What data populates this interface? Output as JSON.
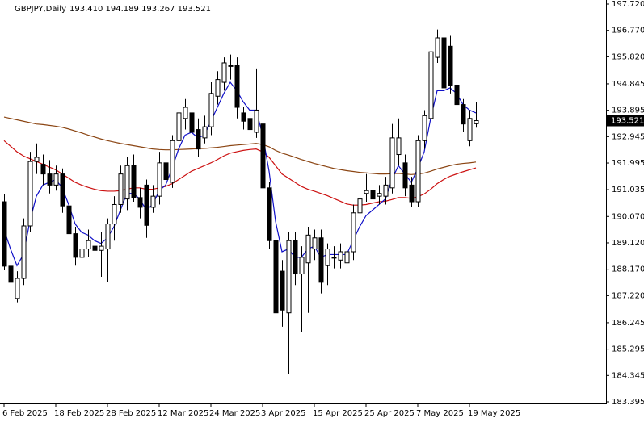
{
  "chart_data": {
    "type": "candlestick",
    "symbol": "GBPJPY,Daily",
    "info": "193.410 194.189 193.267 193.521",
    "categories": [
      "6 Feb 2025",
      null,
      null,
      null,
      null,
      null,
      null,
      null,
      "18 Feb 2025",
      null,
      null,
      null,
      null,
      null,
      null,
      null,
      "28 Feb 2025",
      null,
      null,
      null,
      null,
      null,
      null,
      null,
      "12 Mar 2025",
      null,
      null,
      null,
      null,
      null,
      null,
      null,
      "24 Mar 2025",
      null,
      null,
      null,
      null,
      null,
      null,
      null,
      "3 Apr 2025",
      null,
      null,
      null,
      null,
      null,
      null,
      null,
      "15 Apr 2025",
      null,
      null,
      null,
      null,
      null,
      null,
      null,
      "25 Apr 2025",
      null,
      null,
      null,
      null,
      null,
      null,
      null,
      "7 May 2025",
      null,
      null,
      null,
      null,
      null,
      null,
      null,
      "19 May 2025",
      null
    ],
    "open": [
      190.6,
      188.28,
      187.12,
      187.84,
      189.73,
      192.05,
      191.95,
      191.6,
      191.2,
      191.6,
      190.45,
      189.45,
      188.6,
      188.9,
      189.0,
      188.85,
      188.9,
      189.8,
      190.5,
      190.7,
      191.9,
      190.75,
      191.2,
      190.4,
      190.8,
      192.0,
      191.3,
      192.8,
      193.6,
      193.8,
      193.2,
      192.9,
      193.3,
      194.4,
      194.9,
      195.5,
      195.5,
      193.8,
      193.6,
      193.1,
      193.4,
      191.1,
      189.2,
      188.1,
      186.6,
      189.2,
      188.0,
      188.4,
      188.9,
      189.3,
      188.3,
      188.6,
      188.5,
      188.4,
      188.8,
      190.2,
      190.9,
      191.0,
      190.8,
      190.8,
      191.1,
      192.3,
      192.0,
      191.2,
      190.6,
      192.8,
      193.6,
      195.8,
      196.5,
      196.2,
      194.8,
      194.1,
      192.8,
      193.41
    ],
    "high": [
      190.89,
      188.42,
      188.1,
      190.0,
      192.4,
      192.7,
      192.3,
      192.1,
      191.9,
      191.8,
      190.6,
      189.7,
      189.2,
      189.6,
      189.3,
      189.5,
      190.0,
      190.8,
      191.9,
      192.2,
      192.3,
      191.1,
      191.4,
      191.2,
      192.4,
      192.2,
      193.0,
      194.9,
      194.3,
      195.1,
      193.6,
      193.7,
      194.9,
      195.3,
      195.8,
      195.9,
      195.8,
      194.0,
      193.9,
      195.4,
      193.7,
      191.3,
      189.4,
      188.5,
      189.5,
      189.5,
      189.0,
      189.7,
      189.6,
      189.6,
      189.1,
      189.0,
      189.1,
      189.1,
      190.5,
      190.9,
      191.6,
      191.4,
      191.2,
      191.5,
      193.4,
      193.6,
      192.3,
      191.5,
      193.0,
      193.9,
      196.2,
      196.8,
      196.9,
      196.6,
      195.0,
      194.3,
      193.9,
      194.189
    ],
    "low": [
      188.13,
      187.06,
      186.98,
      187.6,
      189.5,
      191.6,
      191.2,
      190.9,
      191.0,
      190.2,
      189.1,
      188.3,
      188.2,
      188.6,
      188.4,
      187.9,
      187.7,
      189.2,
      190.2,
      190.3,
      190.6,
      190.0,
      189.3,
      190.2,
      190.5,
      191.0,
      191.1,
      192.5,
      193.2,
      192.9,
      192.2,
      192.7,
      193.0,
      194.1,
      194.6,
      195.0,
      193.6,
      193.2,
      192.9,
      192.9,
      190.9,
      188.9,
      186.2,
      186.1,
      184.4,
      187.6,
      185.9,
      186.6,
      188.5,
      187.3,
      187.6,
      188.2,
      188.2,
      187.4,
      188.5,
      189.9,
      190.6,
      190.4,
      190.5,
      190.5,
      190.9,
      191.9,
      190.8,
      190.4,
      190.4,
      192.5,
      193.3,
      195.6,
      194.5,
      194.5,
      193.7,
      193.1,
      192.6,
      193.267
    ],
    "close": [
      188.28,
      187.7,
      187.84,
      189.73,
      192.05,
      192.2,
      191.6,
      191.2,
      191.6,
      190.45,
      189.45,
      188.6,
      188.9,
      189.2,
      188.85,
      189.0,
      189.8,
      190.5,
      191.6,
      191.9,
      190.75,
      190.4,
      189.75,
      190.8,
      192.0,
      191.4,
      192.8,
      193.8,
      194.0,
      193.1,
      192.5,
      193.3,
      194.5,
      195.0,
      195.6,
      195.5,
      194.0,
      193.5,
      193.2,
      193.9,
      191.1,
      189.2,
      186.6,
      186.7,
      189.2,
      188.0,
      188.6,
      189.4,
      189.3,
      187.7,
      188.9,
      188.6,
      188.8,
      188.8,
      190.2,
      190.7,
      191.0,
      190.7,
      190.9,
      191.2,
      192.9,
      192.9,
      191.1,
      190.6,
      192.8,
      193.7,
      196.0,
      196.5,
      194.7,
      194.8,
      194.1,
      193.4,
      193.6,
      193.521
    ],
    "lines": [
      {
        "color": "#8b4513",
        "values": [
          193.65,
          193.6,
          193.55,
          193.5,
          193.45,
          193.4,
          193.38,
          193.35,
          193.32,
          193.28,
          193.22,
          193.15,
          193.08,
          193.0,
          192.93,
          192.86,
          192.8,
          192.75,
          192.7,
          192.66,
          192.62,
          192.58,
          192.54,
          192.5,
          192.48,
          192.47,
          192.47,
          192.48,
          192.49,
          192.5,
          192.51,
          192.52,
          192.54,
          192.56,
          192.59,
          192.62,
          192.64,
          192.66,
          192.68,
          192.7,
          192.66,
          192.58,
          192.45,
          192.35,
          192.28,
          192.2,
          192.12,
          192.05,
          191.98,
          191.92,
          191.86,
          191.8,
          191.76,
          191.72,
          191.69,
          191.66,
          191.64,
          191.62,
          191.6,
          191.6,
          191.61,
          191.62,
          191.6,
          191.58,
          191.6,
          191.63,
          191.7,
          191.78,
          191.84,
          191.9,
          191.95,
          191.98,
          192.0,
          192.03
        ]
      },
      {
        "color": "#cc1010",
        "values": [
          192.8,
          192.6,
          192.4,
          192.25,
          192.15,
          192.05,
          191.95,
          191.85,
          191.75,
          191.6,
          191.45,
          191.3,
          191.2,
          191.12,
          191.05,
          191.0,
          190.98,
          190.98,
          191.0,
          191.05,
          191.1,
          191.1,
          191.05,
          191.05,
          191.1,
          191.15,
          191.25,
          191.4,
          191.55,
          191.7,
          191.8,
          191.9,
          192.0,
          192.12,
          192.25,
          192.35,
          192.4,
          192.45,
          192.48,
          192.5,
          192.4,
          192.2,
          191.9,
          191.6,
          191.45,
          191.3,
          191.15,
          191.05,
          190.98,
          190.9,
          190.82,
          190.72,
          190.62,
          190.52,
          190.48,
          190.48,
          190.5,
          190.55,
          190.6,
          190.62,
          190.68,
          190.75,
          190.75,
          190.72,
          190.78,
          190.88,
          191.05,
          191.25,
          191.4,
          191.52,
          191.6,
          191.68,
          191.75,
          191.82
        ]
      },
      {
        "color": "#1010c8",
        "values": [
          189.6,
          188.9,
          188.3,
          188.7,
          189.9,
          190.8,
          191.2,
          191.3,
          191.4,
          191.1,
          190.5,
          189.8,
          189.5,
          189.4,
          189.2,
          189.1,
          189.3,
          189.7,
          190.3,
          190.9,
          190.9,
          190.7,
          190.3,
          190.5,
          191.0,
          191.2,
          191.8,
          192.5,
          193.0,
          193.1,
          192.9,
          193.0,
          193.5,
          194.0,
          194.5,
          194.9,
          194.6,
          194.2,
          193.9,
          193.9,
          193.0,
          191.7,
          189.9,
          188.8,
          188.9,
          188.6,
          188.6,
          188.9,
          189.0,
          188.6,
          188.7,
          188.7,
          188.7,
          188.7,
          189.2,
          189.7,
          190.1,
          190.3,
          190.5,
          190.7,
          191.4,
          191.9,
          191.6,
          191.3,
          191.8,
          192.4,
          193.6,
          194.6,
          194.6,
          194.7,
          194.5,
          194.1,
          193.9,
          193.8
        ]
      }
    ],
    "ylim": [
      183.395,
      197.72
    ],
    "yticks": [
      {
        "value": 197.72,
        "label": "197.720"
      },
      {
        "value": 196.77,
        "label": "196.770"
      },
      {
        "value": 195.82,
        "label": "195.820"
      },
      {
        "value": 194.845,
        "label": "194.845"
      },
      {
        "value": 193.895,
        "label": "193.895"
      },
      {
        "value": 192.945,
        "label": "192.945"
      },
      {
        "value": 191.995,
        "label": "191.995"
      },
      {
        "value": 191.035,
        "label": "191.035"
      },
      {
        "value": 190.07,
        "label": "190.070"
      },
      {
        "value": 189.12,
        "label": "189.120"
      },
      {
        "value": 188.17,
        "label": "188.170"
      },
      {
        "value": 187.22,
        "label": "187.220"
      },
      {
        "value": 186.245,
        "label": "186.245"
      },
      {
        "value": 185.295,
        "label": "185.295"
      },
      {
        "value": 184.345,
        "label": "184.345"
      },
      {
        "value": 183.395,
        "label": "183.395"
      }
    ],
    "current_price": {
      "value": 193.521,
      "label": "193.521"
    }
  }
}
